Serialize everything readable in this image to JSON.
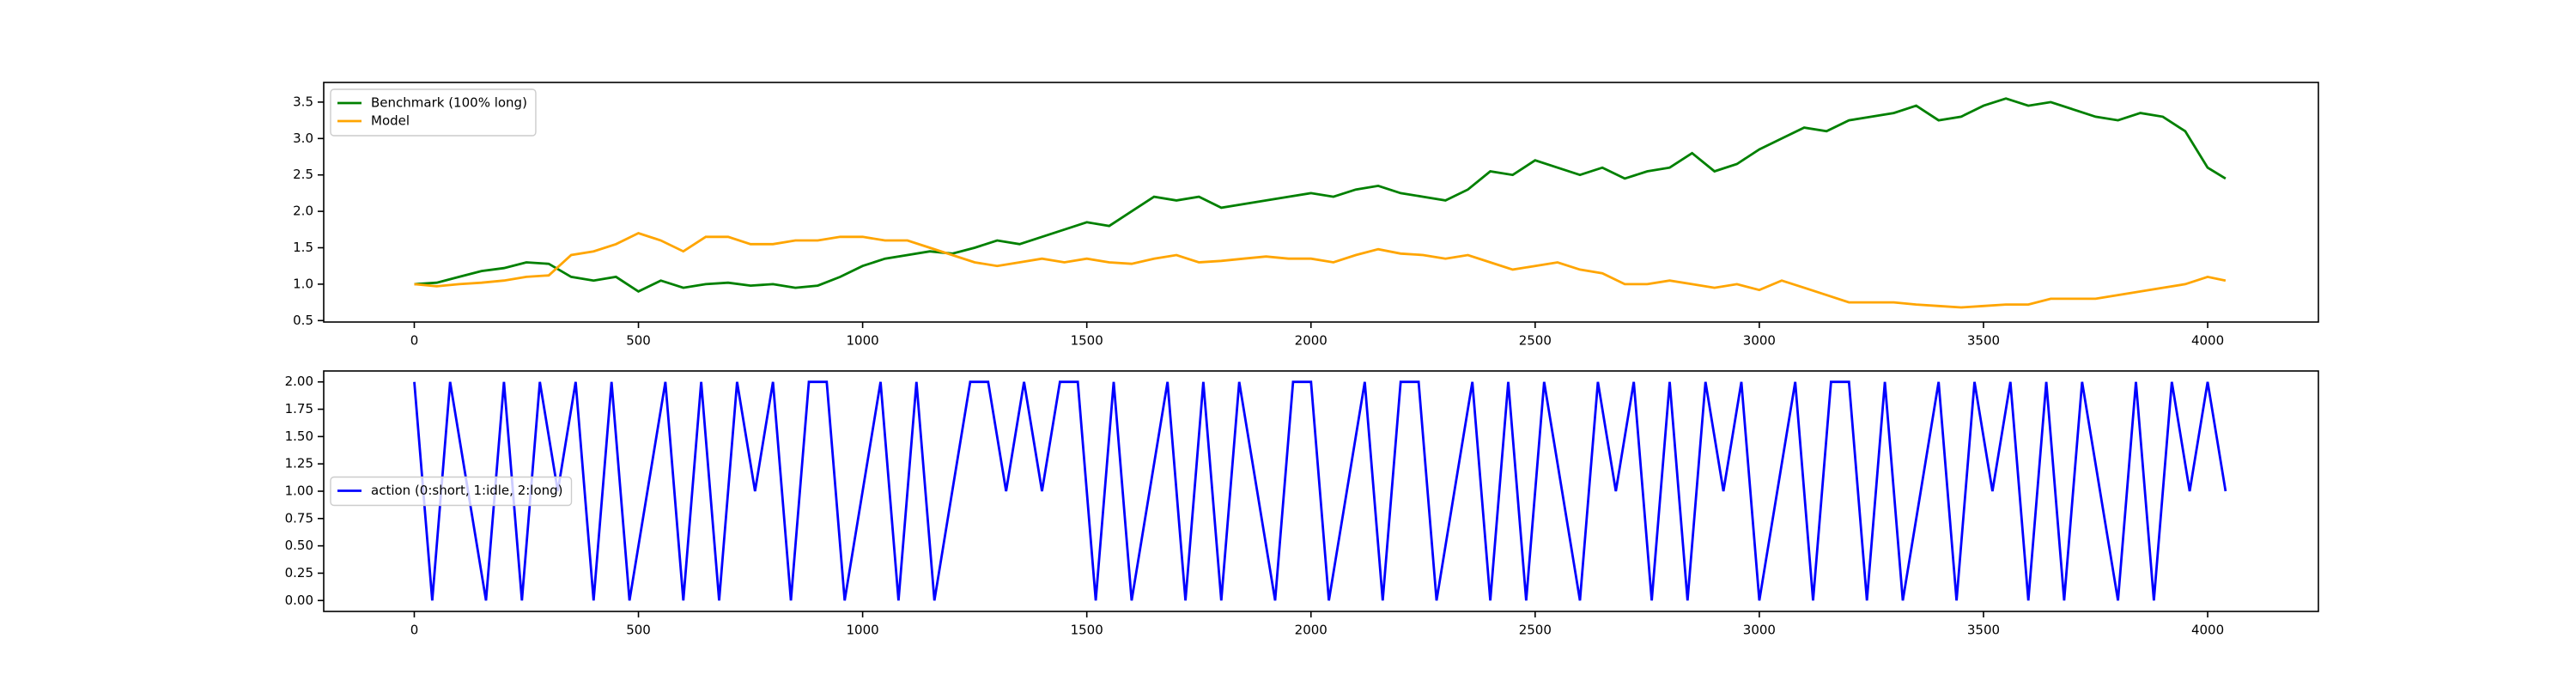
{
  "chart_data": [
    {
      "type": "line",
      "legend": "upper left",
      "xlim": [
        -202,
        4247
      ],
      "ylim": [
        0.48,
        3.77
      ],
      "xticks": [
        0,
        500,
        1000,
        1500,
        2000,
        2500,
        3000,
        3500,
        4000
      ],
      "yticks": [
        0.5,
        {
          "value": 1,
          "label": "1.0"
        },
        1.5,
        {
          "value": 2,
          "label": "2.0"
        },
        2.5,
        {
          "value": 3,
          "label": "3.0"
        },
        3.5
      ],
      "x": [
        0,
        50,
        100,
        150,
        200,
        250,
        300,
        350,
        400,
        450,
        500,
        550,
        600,
        650,
        700,
        750,
        800,
        850,
        900,
        950,
        1000,
        1050,
        1100,
        1150,
        1200,
        1250,
        1300,
        1350,
        1400,
        1450,
        1500,
        1550,
        1600,
        1650,
        1700,
        1750,
        1800,
        1850,
        1900,
        1950,
        2000,
        2050,
        2100,
        2150,
        2200,
        2250,
        2300,
        2350,
        2400,
        2450,
        2500,
        2550,
        2600,
        2650,
        2700,
        2750,
        2800,
        2850,
        2900,
        2950,
        3000,
        3050,
        3100,
        3150,
        3200,
        3250,
        3300,
        3350,
        3400,
        3450,
        3500,
        3550,
        3600,
        3650,
        3700,
        3750,
        3800,
        3850,
        3900,
        3950,
        4000,
        4040
      ],
      "series": [
        {
          "name": "Benchmark (100% long)",
          "color": "#008000",
          "values": [
            1.0,
            1.02,
            1.1,
            1.18,
            1.22,
            1.3,
            1.28,
            1.1,
            1.05,
            1.1,
            0.9,
            1.05,
            0.95,
            1.0,
            1.02,
            0.98,
            1.0,
            0.95,
            0.98,
            1.1,
            1.25,
            1.35,
            1.4,
            1.45,
            1.42,
            1.5,
            1.6,
            1.55,
            1.65,
            1.75,
            1.85,
            1.8,
            2.0,
            2.2,
            2.15,
            2.2,
            2.05,
            2.1,
            2.15,
            2.2,
            2.25,
            2.2,
            2.3,
            2.35,
            2.25,
            2.2,
            2.15,
            2.3,
            2.55,
            2.5,
            2.7,
            2.6,
            2.5,
            2.6,
            2.45,
            2.55,
            2.6,
            2.8,
            2.55,
            2.65,
            2.85,
            3.0,
            3.15,
            3.1,
            3.25,
            3.3,
            3.35,
            3.45,
            3.25,
            3.3,
            3.45,
            3.55,
            3.45,
            3.5,
            3.4,
            3.3,
            3.25,
            3.35,
            3.3,
            3.1,
            2.6,
            2.45
          ]
        },
        {
          "name": "Model",
          "color": "#ffa500",
          "values": [
            1.0,
            0.97,
            1.0,
            1.02,
            1.05,
            1.1,
            1.12,
            1.4,
            1.45,
            1.55,
            1.7,
            1.6,
            1.45,
            1.65,
            1.65,
            1.55,
            1.55,
            1.6,
            1.6,
            1.65,
            1.65,
            1.6,
            1.6,
            1.5,
            1.4,
            1.3,
            1.25,
            1.3,
            1.35,
            1.3,
            1.35,
            1.3,
            1.28,
            1.35,
            1.4,
            1.3,
            1.32,
            1.35,
            1.38,
            1.35,
            1.35,
            1.3,
            1.4,
            1.48,
            1.42,
            1.4,
            1.35,
            1.4,
            1.3,
            1.2,
            1.25,
            1.3,
            1.2,
            1.15,
            1.0,
            1.0,
            1.05,
            1.0,
            0.95,
            1.0,
            0.92,
            1.05,
            0.95,
            0.85,
            0.75,
            0.75,
            0.75,
            0.72,
            0.7,
            0.68,
            0.7,
            0.72,
            0.72,
            0.8,
            0.8,
            0.8,
            0.85,
            0.9,
            0.95,
            1.0,
            1.1,
            1.05
          ]
        }
      ]
    },
    {
      "type": "line",
      "legend": "center left",
      "xlim": [
        -202,
        4247
      ],
      "ylim": [
        -0.1,
        2.1
      ],
      "xticks": [
        0,
        500,
        1000,
        1500,
        2000,
        2500,
        3000,
        3500,
        4000
      ],
      "yticks": [
        {
          "value": 0,
          "label": "0.00"
        },
        {
          "value": 0.25,
          "label": "0.25"
        },
        {
          "value": 0.5,
          "label": "0.50"
        },
        {
          "value": 0.75,
          "label": "0.75"
        },
        {
          "value": 1,
          "label": "1.00"
        },
        {
          "value": 1.25,
          "label": "1.25"
        },
        {
          "value": 1.5,
          "label": "1.50"
        },
        {
          "value": 1.75,
          "label": "1.75"
        },
        {
          "value": 2,
          "label": "2.00"
        }
      ],
      "x": [
        0,
        40,
        80,
        120,
        160,
        200,
        240,
        280,
        320,
        360,
        400,
        440,
        480,
        520,
        560,
        600,
        640,
        680,
        720,
        760,
        800,
        840,
        880,
        920,
        960,
        1000,
        1040,
        1080,
        1120,
        1160,
        1200,
        1240,
        1280,
        1320,
        1360,
        1400,
        1440,
        1480,
        1520,
        1560,
        1600,
        1640,
        1680,
        1720,
        1760,
        1800,
        1840,
        1880,
        1920,
        1960,
        2000,
        2040,
        2080,
        2120,
        2160,
        2200,
        2240,
        2280,
        2320,
        2360,
        2400,
        2440,
        2480,
        2520,
        2560,
        2600,
        2640,
        2680,
        2720,
        2760,
        2800,
        2840,
        2880,
        2920,
        2960,
        3000,
        3040,
        3080,
        3120,
        3160,
        3200,
        3240,
        3280,
        3320,
        3360,
        3400,
        3440,
        3480,
        3520,
        3560,
        3600,
        3640,
        3680,
        3720,
        3760,
        3800,
        3840,
        3880,
        3920,
        3960,
        4000,
        4040
      ],
      "series": [
        {
          "name": "action (0:short, 1:idle, 2:long)",
          "color": "#0000ff",
          "values": [
            2,
            0,
            2,
            1,
            0,
            2,
            0,
            2,
            1,
            2,
            0,
            2,
            0,
            1,
            2,
            0,
            2,
            0,
            2,
            1,
            2,
            0,
            2,
            2,
            0,
            1,
            2,
            0,
            2,
            0,
            1,
            2,
            2,
            1,
            2,
            1,
            2,
            2,
            0,
            2,
            0,
            1,
            2,
            0,
            2,
            0,
            2,
            1,
            0,
            2,
            2,
            0,
            1,
            2,
            0,
            2,
            2,
            0,
            1,
            2,
            0,
            2,
            0,
            2,
            1,
            0,
            2,
            1,
            2,
            0,
            2,
            0,
            2,
            1,
            2,
            0,
            1,
            2,
            0,
            2,
            2,
            0,
            2,
            0,
            1,
            2,
            0,
            2,
            1,
            2,
            0,
            2,
            0,
            2,
            1,
            0,
            2,
            0,
            2,
            1,
            2,
            1
          ]
        }
      ]
    }
  ]
}
